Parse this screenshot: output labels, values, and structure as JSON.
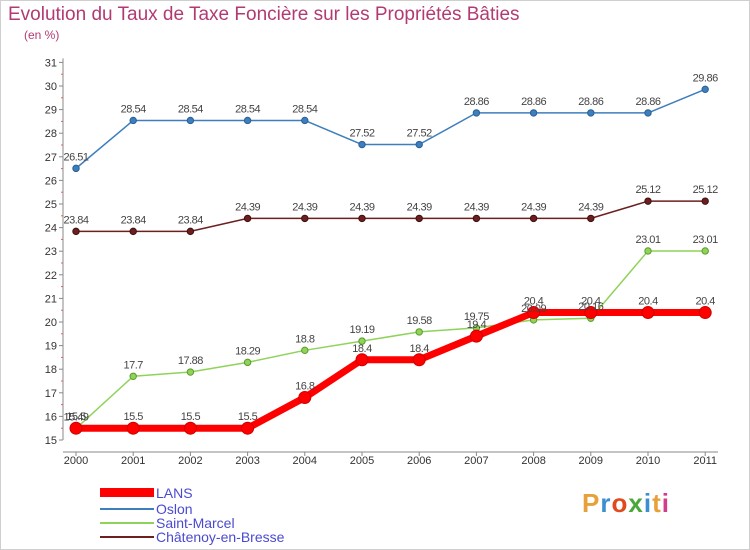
{
  "title": "Evolution du Taux de Taxe Foncière sur les Propriétés Bâties",
  "unit_label": "(en %)",
  "brand": {
    "text": "Proxiti",
    "colors": [
      "#e8a13a",
      "#3c8fd0",
      "#e04a1e",
      "#48a83a",
      "#3c8fd0",
      "#e8a13a",
      "#d23c8a"
    ]
  },
  "chart_data": {
    "type": "line",
    "title": "Evolution du Taux de Taxe Foncière sur les Propriétés Bâties",
    "ylabel": "(en %)",
    "xlabel": "",
    "ylim": [
      15,
      31
    ],
    "y_ticks": [
      15,
      16,
      17,
      18,
      19,
      20,
      21,
      22,
      23,
      24,
      25,
      26,
      27,
      28,
      29,
      30,
      31
    ],
    "categories": [
      "2000",
      "2001",
      "2002",
      "2003",
      "2004",
      "2005",
      "2006",
      "2007",
      "2008",
      "2009",
      "2010",
      "2011"
    ],
    "legend_position": "bottom-left",
    "series": [
      {
        "name": "LANS",
        "color": "#ff0000",
        "values": [
          15.5,
          15.5,
          15.5,
          15.5,
          16.8,
          18.4,
          18.4,
          19.4,
          20.4,
          20.4,
          20.4,
          20.4
        ],
        "labels": [
          "15.5",
          "15.5",
          "15.5",
          "15.5",
          "16.8",
          "18.4",
          "18.4",
          "19.4",
          "20.4",
          "20.4",
          "20.4",
          "20.4"
        ]
      },
      {
        "name": "Oslon",
        "color": "#3d7ebd",
        "values": [
          26.51,
          28.54,
          28.54,
          28.54,
          28.54,
          27.52,
          27.52,
          28.86,
          28.86,
          28.86,
          28.86,
          29.86
        ],
        "labels": [
          "26.51",
          "28.54",
          "28.54",
          "28.54",
          "28.54",
          "27.52",
          "27.52",
          "28.86",
          "28.86",
          "28.86",
          "28.86",
          "29.86"
        ]
      },
      {
        "name": "Saint-Marcel",
        "color": "#8fd35a",
        "values": [
          15.49,
          17.7,
          17.88,
          18.29,
          18.8,
          19.19,
          19.58,
          19.75,
          20.09,
          20.16,
          23.01,
          23.01
        ],
        "labels": [
          "15.49",
          "17.7",
          "17.88",
          "18.29",
          "18.8",
          "19.19",
          "19.58",
          "19.75",
          "20.09",
          "20.16",
          "23.01",
          "23.01"
        ]
      },
      {
        "name": "Châtenoy-en-Bresse",
        "color": "#6d1f1f",
        "values": [
          23.84,
          23.84,
          23.84,
          24.39,
          24.39,
          24.39,
          24.39,
          24.39,
          24.39,
          24.39,
          25.12,
          25.12
        ],
        "labels": [
          "23.84",
          "23.84",
          "23.84",
          "24.39",
          "24.39",
          "24.39",
          "24.39",
          "24.39",
          "24.39",
          "24.39",
          "25.12",
          "25.12"
        ]
      }
    ]
  }
}
